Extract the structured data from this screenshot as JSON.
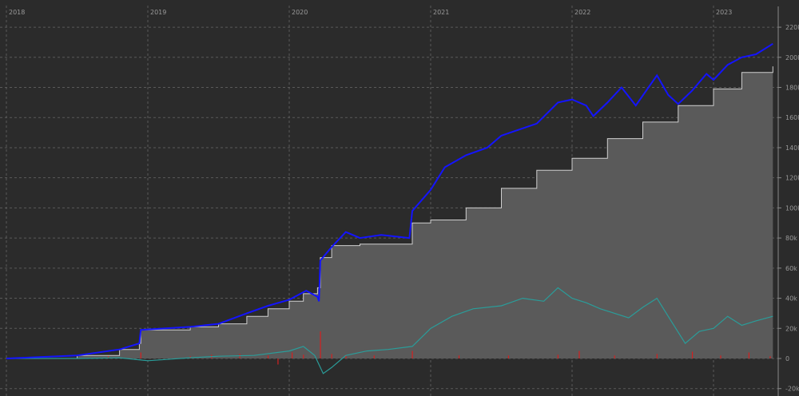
{
  "chart_data": {
    "type": "line",
    "title": "",
    "xlabel": "",
    "ylabel": "",
    "xlim": [
      2018.0,
      2023.44
    ],
    "ylim": [
      -25000,
      230000
    ],
    "grid": true,
    "legend": "none",
    "x_ticks": [
      {
        "value": 2018,
        "label": "2018"
      },
      {
        "value": 2019,
        "label": "2019"
      },
      {
        "value": 2020,
        "label": "2020"
      },
      {
        "value": 2021,
        "label": "2021"
      },
      {
        "value": 2022,
        "label": "2022"
      },
      {
        "value": 2023,
        "label": "2023"
      }
    ],
    "y_ticks": [
      {
        "value": -20000,
        "label": "-20k"
      },
      {
        "value": 0,
        "label": "0"
      },
      {
        "value": 20000,
        "label": "20k"
      },
      {
        "value": 40000,
        "label": "40k"
      },
      {
        "value": 60000,
        "label": "60k"
      },
      {
        "value": 80000,
        "label": "80k"
      },
      {
        "value": 100000,
        "label": "100k"
      },
      {
        "value": 120000,
        "label": "120k"
      },
      {
        "value": 140000,
        "label": "140k"
      },
      {
        "value": 160000,
        "label": "160k"
      },
      {
        "value": 180000,
        "label": "180k"
      },
      {
        "value": 200000,
        "label": "200k"
      },
      {
        "value": 220000,
        "label": "220k"
      }
    ],
    "series": [
      {
        "role": "invested-area",
        "type": "area",
        "color": "#5a5a5a",
        "stroke": "#cfcfcf",
        "points": [
          [
            2018.0,
            0
          ],
          [
            2018.5,
            2000
          ],
          [
            2018.8,
            6000
          ],
          [
            2018.94,
            10000
          ],
          [
            2018.95,
            19000
          ],
          [
            2019.3,
            21000
          ],
          [
            2019.5,
            23000
          ],
          [
            2019.7,
            28000
          ],
          [
            2019.85,
            33000
          ],
          [
            2020.0,
            38000
          ],
          [
            2020.1,
            43000
          ],
          [
            2020.2,
            47000
          ],
          [
            2020.22,
            67000
          ],
          [
            2020.3,
            75000
          ],
          [
            2020.5,
            76000
          ],
          [
            2020.85,
            76000
          ],
          [
            2020.87,
            90000
          ],
          [
            2021.0,
            92000
          ],
          [
            2021.25,
            100000
          ],
          [
            2021.5,
            113000
          ],
          [
            2021.75,
            125000
          ],
          [
            2022.0,
            133000
          ],
          [
            2022.25,
            146000
          ],
          [
            2022.5,
            157000
          ],
          [
            2022.75,
            168000
          ],
          [
            2023.0,
            179000
          ],
          [
            2023.2,
            190000
          ],
          [
            2023.42,
            194000
          ]
        ]
      },
      {
        "role": "portfolio-value",
        "type": "line",
        "color": "#1414ff",
        "points": [
          [
            2018.0,
            0
          ],
          [
            2018.5,
            2000
          ],
          [
            2018.8,
            6000
          ],
          [
            2018.94,
            10000
          ],
          [
            2018.95,
            19000
          ],
          [
            2019.3,
            21000
          ],
          [
            2019.5,
            23000
          ],
          [
            2019.7,
            30000
          ],
          [
            2019.85,
            35000
          ],
          [
            2020.0,
            39000
          ],
          [
            2020.12,
            45000
          ],
          [
            2020.2,
            41000
          ],
          [
            2020.21,
            38000
          ],
          [
            2020.22,
            65000
          ],
          [
            2020.3,
            74000
          ],
          [
            2020.4,
            84000
          ],
          [
            2020.5,
            80000
          ],
          [
            2020.65,
            82000
          ],
          [
            2020.85,
            80000
          ],
          [
            2020.87,
            98000
          ],
          [
            2021.0,
            112000
          ],
          [
            2021.1,
            127000
          ],
          [
            2021.25,
            135000
          ],
          [
            2021.4,
            140000
          ],
          [
            2021.5,
            148000
          ],
          [
            2021.75,
            156000
          ],
          [
            2021.9,
            170000
          ],
          [
            2022.0,
            172000
          ],
          [
            2022.1,
            168000
          ],
          [
            2022.15,
            161000
          ],
          [
            2022.25,
            170000
          ],
          [
            2022.35,
            180000
          ],
          [
            2022.45,
            168000
          ],
          [
            2022.6,
            188000
          ],
          [
            2022.68,
            175000
          ],
          [
            2022.75,
            169000
          ],
          [
            2022.85,
            178000
          ],
          [
            2022.95,
            189000
          ],
          [
            2023.0,
            185000
          ],
          [
            2023.1,
            195000
          ],
          [
            2023.2,
            200000
          ],
          [
            2023.3,
            202000
          ],
          [
            2023.42,
            209000
          ]
        ]
      },
      {
        "role": "profit",
        "type": "line",
        "color": "#2a9d9a",
        "points": [
          [
            2018.0,
            0
          ],
          [
            2018.5,
            0
          ],
          [
            2018.8,
            500
          ],
          [
            2018.95,
            -1000
          ],
          [
            2019.0,
            -1500
          ],
          [
            2019.3,
            500
          ],
          [
            2019.5,
            1500
          ],
          [
            2019.75,
            2000
          ],
          [
            2020.0,
            5000
          ],
          [
            2020.1,
            8000
          ],
          [
            2020.18,
            2000
          ],
          [
            2020.24,
            -10000
          ],
          [
            2020.3,
            -6000
          ],
          [
            2020.4,
            2000
          ],
          [
            2020.55,
            5000
          ],
          [
            2020.7,
            6000
          ],
          [
            2020.87,
            8000
          ],
          [
            2021.0,
            20000
          ],
          [
            2021.15,
            28000
          ],
          [
            2021.3,
            33000
          ],
          [
            2021.5,
            35000
          ],
          [
            2021.65,
            40000
          ],
          [
            2021.8,
            38000
          ],
          [
            2021.9,
            47000
          ],
          [
            2022.0,
            40000
          ],
          [
            2022.1,
            37000
          ],
          [
            2022.2,
            33000
          ],
          [
            2022.3,
            30000
          ],
          [
            2022.4,
            27000
          ],
          [
            2022.5,
            34000
          ],
          [
            2022.6,
            40000
          ],
          [
            2022.7,
            25000
          ],
          [
            2022.8,
            10000
          ],
          [
            2022.9,
            18000
          ],
          [
            2023.0,
            20000
          ],
          [
            2023.1,
            28000
          ],
          [
            2023.2,
            22000
          ],
          [
            2023.3,
            25000
          ],
          [
            2023.42,
            28000
          ]
        ]
      },
      {
        "role": "daily-change",
        "type": "bar",
        "color": "#d42020",
        "points": [
          [
            2018.72,
            1500
          ],
          [
            2018.95,
            4000
          ],
          [
            2019.3,
            1500
          ],
          [
            2019.45,
            2500
          ],
          [
            2019.65,
            3000
          ],
          [
            2019.85,
            2000
          ],
          [
            2019.92,
            -4000
          ],
          [
            2020.02,
            4000
          ],
          [
            2020.1,
            2500
          ],
          [
            2020.22,
            18000
          ],
          [
            2020.3,
            3000
          ],
          [
            2020.4,
            2500
          ],
          [
            2020.6,
            2000
          ],
          [
            2020.87,
            5000
          ],
          [
            2021.2,
            2000
          ],
          [
            2021.55,
            2000
          ],
          [
            2021.9,
            2500
          ],
          [
            2022.05,
            5000
          ],
          [
            2022.3,
            2000
          ],
          [
            2022.6,
            3000
          ],
          [
            2022.85,
            4500
          ],
          [
            2023.05,
            2000
          ],
          [
            2023.25,
            4000
          ],
          [
            2023.4,
            1500
          ]
        ]
      }
    ]
  }
}
